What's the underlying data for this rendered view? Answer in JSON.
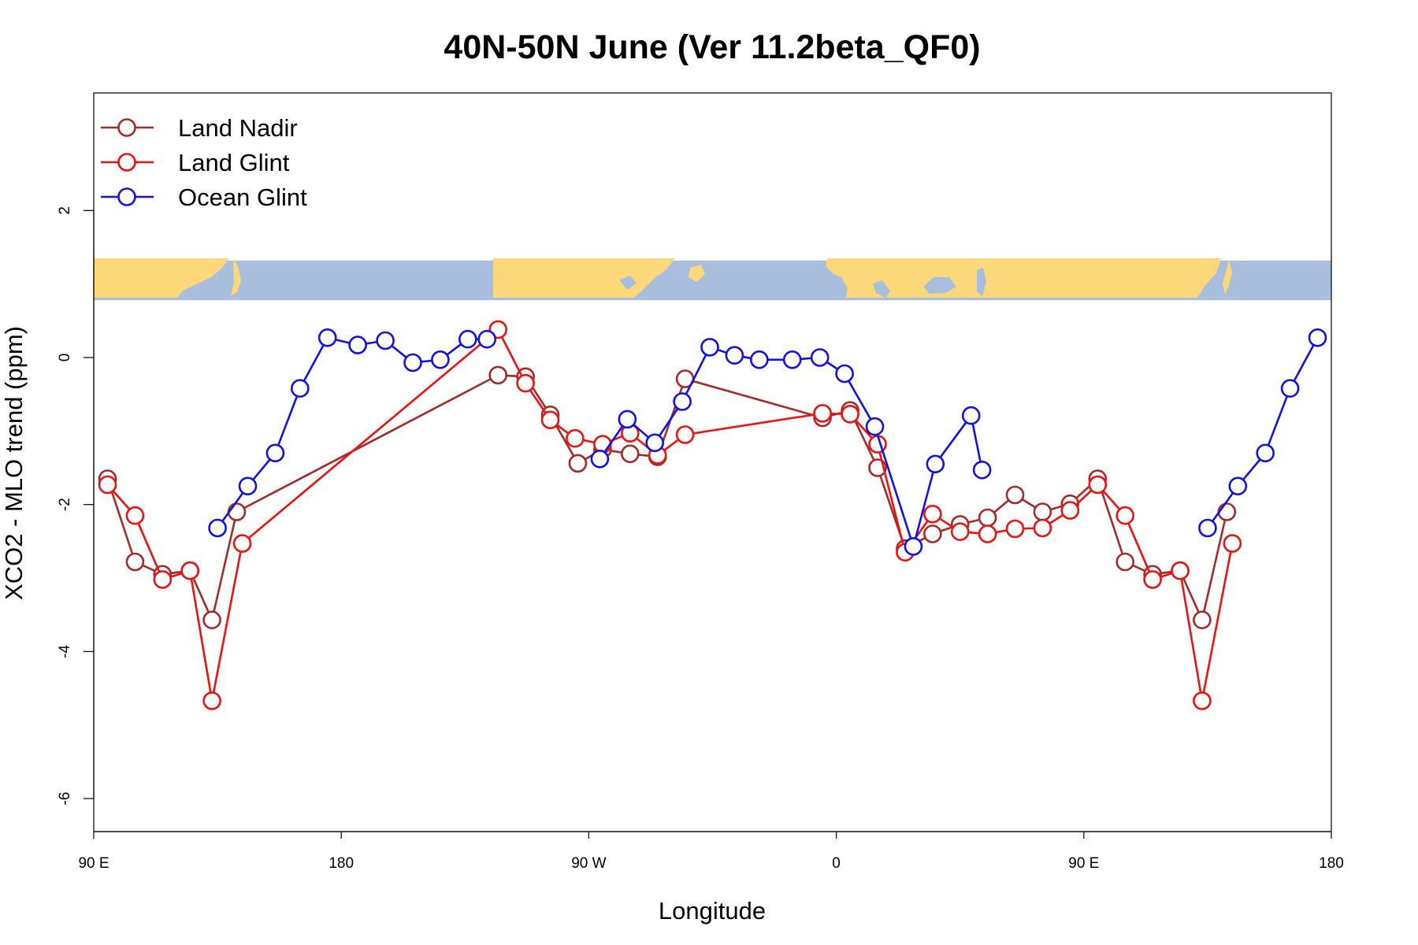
{
  "chart_data": {
    "type": "line",
    "title": "40N-50N June (Ver 11.2beta_QF0)",
    "xlabel": "Longitude",
    "ylabel": "XCO2 - MLO trend (ppm)",
    "xlim": [
      90,
      540
    ],
    "ylim": [
      -6.45,
      3.6
    ],
    "x_ticks": [
      {
        "value": 90,
        "label": "90 E"
      },
      {
        "value": 180,
        "label": "180"
      },
      {
        "value": 270,
        "label": "90 W"
      },
      {
        "value": 360,
        "label": "0"
      },
      {
        "value": 450,
        "label": "90 E"
      },
      {
        "value": 540,
        "label": "180"
      }
    ],
    "y_ticks": [
      {
        "value": 2,
        "label": "2"
      },
      {
        "value": 0,
        "label": "0"
      },
      {
        "value": -2,
        "label": "-2"
      },
      {
        "value": -4,
        "label": "-4"
      },
      {
        "value": -6,
        "label": "-6"
      }
    ],
    "legend_position": "top-left",
    "grid": false,
    "map_strip": {
      "ymin": 0.78,
      "ymax": 1.32,
      "ocean_color": "#a9bedc",
      "land_color": "#fcd87a"
    },
    "series": [
      {
        "name": "Land Nadir",
        "color": "#a52a2a",
        "points": [
          [
            95,
            -1.65
          ],
          [
            105,
            -2.78
          ],
          [
            115,
            -2.95
          ],
          [
            125,
            -2.9
          ],
          [
            133,
            -3.57
          ],
          [
            142,
            -2.1
          ],
          [
            237,
            -0.24
          ],
          [
            247,
            -0.26
          ],
          [
            256,
            -0.78
          ],
          [
            266,
            -1.44
          ],
          [
            275,
            -1.25
          ],
          [
            285,
            -1.31
          ],
          [
            295,
            -1.35
          ],
          [
            305,
            -0.29
          ],
          [
            355,
            -0.82
          ],
          [
            365,
            -0.72
          ],
          [
            375,
            -1.5
          ],
          [
            385,
            -2.6
          ],
          [
            395,
            -2.4
          ],
          [
            405,
            -2.27
          ],
          [
            415,
            -2.18
          ],
          [
            425,
            -1.87
          ],
          [
            435,
            -2.1
          ],
          [
            445,
            -1.99
          ],
          [
            455,
            -1.65
          ],
          [
            465,
            -2.78
          ],
          [
            475,
            -2.95
          ],
          [
            485,
            -2.9
          ],
          [
            493,
            -3.57
          ],
          [
            502,
            -2.1
          ]
        ]
      },
      {
        "name": "Land Glint",
        "color": "#ee1111",
        "points": [
          [
            95,
            -1.73
          ],
          [
            105,
            -2.15
          ],
          [
            115,
            -3.02
          ],
          [
            125,
            -2.9
          ],
          [
            133,
            -4.67
          ],
          [
            144,
            -2.53
          ],
          [
            237,
            0.38
          ],
          [
            247,
            -0.35
          ],
          [
            256,
            -0.85
          ],
          [
            265,
            -1.1
          ],
          [
            275,
            -1.18
          ],
          [
            285,
            -1.03
          ],
          [
            295,
            -1.33
          ],
          [
            305,
            -1.05
          ],
          [
            355,
            -0.76
          ],
          [
            365,
            -0.77
          ],
          [
            375,
            -1.18
          ],
          [
            385,
            -2.65
          ],
          [
            395,
            -2.13
          ],
          [
            405,
            -2.37
          ],
          [
            415,
            -2.4
          ],
          [
            425,
            -2.33
          ],
          [
            435,
            -2.32
          ],
          [
            445,
            -2.08
          ],
          [
            455,
            -1.73
          ],
          [
            465,
            -2.15
          ],
          [
            475,
            -3.02
          ],
          [
            485,
            -2.9
          ],
          [
            493,
            -4.67
          ],
          [
            504,
            -2.53
          ]
        ]
      },
      {
        "name": "Ocean Glint",
        "color": "#1111ee",
        "segments": [
          [
            [
              135,
              -2.32
            ],
            [
              146,
              -1.75
            ],
            [
              156,
              -1.3
            ],
            [
              165,
              -0.42
            ],
            [
              175,
              0.27
            ],
            [
              186,
              0.17
            ],
            [
              196,
              0.23
            ],
            [
              206,
              -0.07
            ],
            [
              216,
              -0.03
            ],
            [
              226,
              0.25
            ],
            [
              233,
              0.25
            ]
          ],
          [
            [
              274,
              -1.38
            ],
            [
              284,
              -0.84
            ],
            [
              294,
              -1.16
            ],
            [
              304,
              -0.6
            ],
            [
              314,
              0.14
            ],
            [
              323,
              0.03
            ],
            [
              332,
              -0.03
            ],
            [
              344,
              -0.03
            ],
            [
              354,
              0.0
            ],
            [
              363,
              -0.22
            ],
            [
              374,
              -0.94
            ],
            [
              388,
              -2.57
            ],
            [
              396,
              -1.45
            ],
            [
              409,
              -0.79
            ],
            [
              413,
              -1.53
            ]
          ],
          [
            [
              495,
              -2.32
            ],
            [
              506,
              -1.75
            ],
            [
              516,
              -1.3
            ],
            [
              525,
              -0.42
            ],
            [
              535,
              0.27
            ]
          ]
        ]
      }
    ]
  }
}
